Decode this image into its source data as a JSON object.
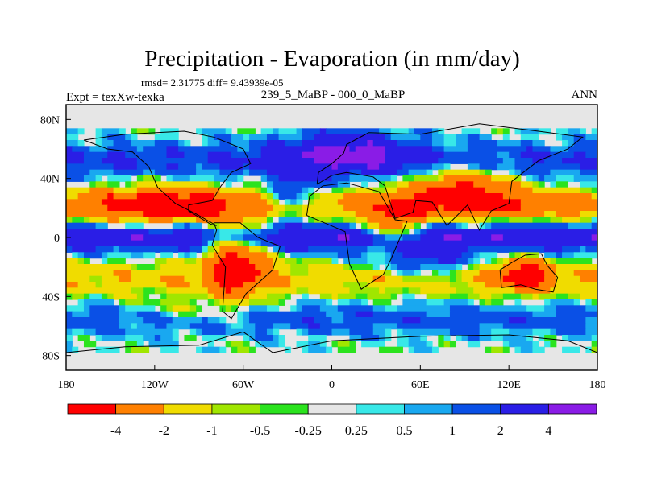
{
  "chart_data": {
    "type": "heatmap",
    "title": "Precipitation - Evaporation (in mm/day)",
    "stats": "rmsd= 2.31775 diff= 9.43939e-05",
    "left_label": "Expt = texXw-texka",
    "center_label": "239_5_MaBP - 000_0_MaBP",
    "right_label": "ANN",
    "x_range": [
      -180,
      180
    ],
    "y_range": [
      -90,
      90
    ],
    "x_ticks": [
      {
        "value": -180,
        "label": "180"
      },
      {
        "value": -120,
        "label": "120W"
      },
      {
        "value": -60,
        "label": "60W"
      },
      {
        "value": 0,
        "label": "0"
      },
      {
        "value": 60,
        "label": "60E"
      },
      {
        "value": 120,
        "label": "120E"
      },
      {
        "value": 180,
        "label": "180"
      }
    ],
    "y_ticks": [
      {
        "value": 80,
        "label": "80N"
      },
      {
        "value": 40,
        "label": "40N"
      },
      {
        "value": 0,
        "label": "0"
      },
      {
        "value": -40,
        "label": "40S"
      },
      {
        "value": -80,
        "label": "80S"
      }
    ],
    "colorbar": {
      "colors": [
        "#ff0000",
        "#ff8000",
        "#f0dc00",
        "#a0e600",
        "#2be31e",
        "#e6e6e6",
        "#38e8e8",
        "#19a8f0",
        "#0a50e6",
        "#2a1ee6",
        "#8a1ce6"
      ],
      "labels": [
        "-4",
        "-2",
        "-1",
        "-0.5",
        "-0.25",
        "0.25",
        "0.5",
        "1",
        "2",
        "4"
      ]
    }
  }
}
